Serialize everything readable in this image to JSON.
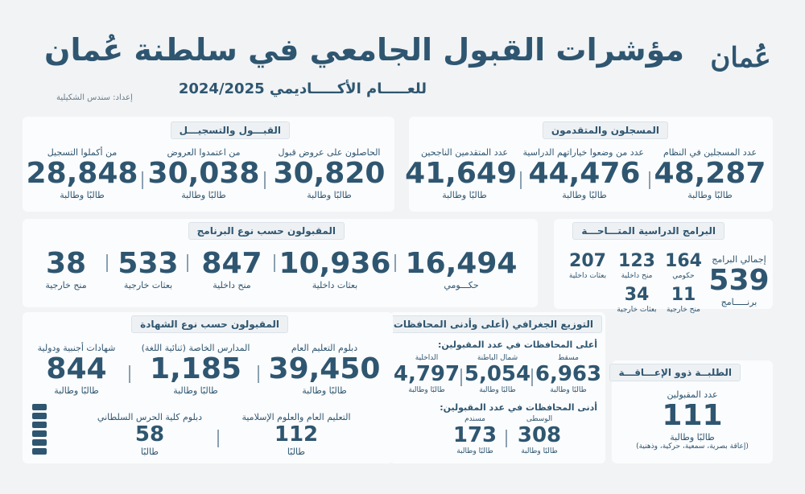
{
  "header": {
    "title": "مؤشرات القبول الجامعي في سلطنة عُمان",
    "subtitle": "للعـــــام الأكـــــاديمي 2024/2025",
    "credit": "إعداد: سندس الشكيلية",
    "logo": "عُمان"
  },
  "registered": {
    "title": "المسجلون والمتقدمون",
    "items": [
      {
        "label": "عدد المسجلين في النظام",
        "value": "48,287",
        "unit": "طالبًا وطالبة"
      },
      {
        "label": "عدد من وضعوا خياراتهم الدراسية",
        "value": "44,476",
        "unit": "طالبًا وطالبة"
      },
      {
        "label": "عدد المتقدمين الناجحين",
        "value": "41,649",
        "unit": "طالبًا وطالبة"
      }
    ]
  },
  "admission": {
    "title": "القبـــول والتسجيـــل",
    "items": [
      {
        "label": "الحاصلون على عروض قبول",
        "value": "30,820",
        "unit": "طالبًا وطالبة"
      },
      {
        "label": "من اعتمدوا العروض",
        "value": "30,038",
        "unit": "طالبًا وطالبة"
      },
      {
        "label": "من أكملوا التسجيل",
        "value": "28,848",
        "unit": "طالبًا وطالبة"
      }
    ]
  },
  "programs": {
    "title": "البرامج الدراسية المتـــاحـــة",
    "total_label": "إجمالي البرامج",
    "total_value": "539",
    "total_unit": "برنـــــامج",
    "items": [
      {
        "value": "164",
        "label": "حكومي"
      },
      {
        "value": "123",
        "label": "منح داخلية"
      },
      {
        "value": "207",
        "label": "بعثات داخلية"
      },
      {
        "value": "11",
        "label": "منح خارجية"
      },
      {
        "value": "34",
        "label": "بعثات خارجية"
      }
    ]
  },
  "by_program": {
    "title": "المقبولون حسب نوع البرنامج",
    "items": [
      {
        "value": "16,494",
        "label": "حكـــومي"
      },
      {
        "value": "10,936",
        "label": "بعثات داخلية"
      },
      {
        "value": "847",
        "label": "منح داخلية"
      },
      {
        "value": "533",
        "label": "بعثات خارجية"
      },
      {
        "value": "38",
        "label": "منح خارجية"
      }
    ]
  },
  "disabled": {
    "title": "الطلبــة ذوو الإعـــاقـــة",
    "label": "عدد المقبولين",
    "value": "111",
    "unit": "طالبًا وطالبة",
    "note": "(إعاقة بصرية، سمعية، حركية، وذهنية)"
  },
  "geo": {
    "title": "التوزيع الجغرافي (أعلى وأدنى المحافظات)",
    "top_label": "أعلى المحافظات في عدد المقبولين:",
    "top": [
      {
        "gov": "مسقط",
        "value": "6,963",
        "unit": "طالبًا وطالبة"
      },
      {
        "gov": "شمال الباطنة",
        "value": "5,054",
        "unit": "طالبًا وطالبة"
      },
      {
        "gov": "الداخلية",
        "value": "4,797",
        "unit": "طالبًا وطالبة"
      }
    ],
    "bottom_label": "أدنى المحافظات في عدد المقبولين:",
    "bottom": [
      {
        "gov": "الوسطى",
        "value": "308",
        "unit": "طالبًا وطالبة"
      },
      {
        "gov": "مسندم",
        "value": "173",
        "unit": "طالبًا وطالبة"
      }
    ]
  },
  "by_certificate": {
    "title": "المقبولون حسب نوع الشهادة",
    "items": [
      {
        "label": "دبلوم التعليم العام",
        "value": "39,450",
        "unit": "طالبًا وطالبة"
      },
      {
        "label": "المدارس الخاصة (ثنائية اللغة)",
        "value": "1,185",
        "unit": "طالبًا وطالبة"
      },
      {
        "label": "شهادات أجنبية ودولية",
        "value": "844",
        "unit": "طالبًا وطالبة"
      },
      {
        "label": "التعليم العام والعلوم الإسلامية",
        "value": "112",
        "unit": "طالبًا"
      },
      {
        "label": "دبلوم كلية الحرس السلطاني",
        "value": "58",
        "unit": "طالبًا"
      }
    ]
  }
}
